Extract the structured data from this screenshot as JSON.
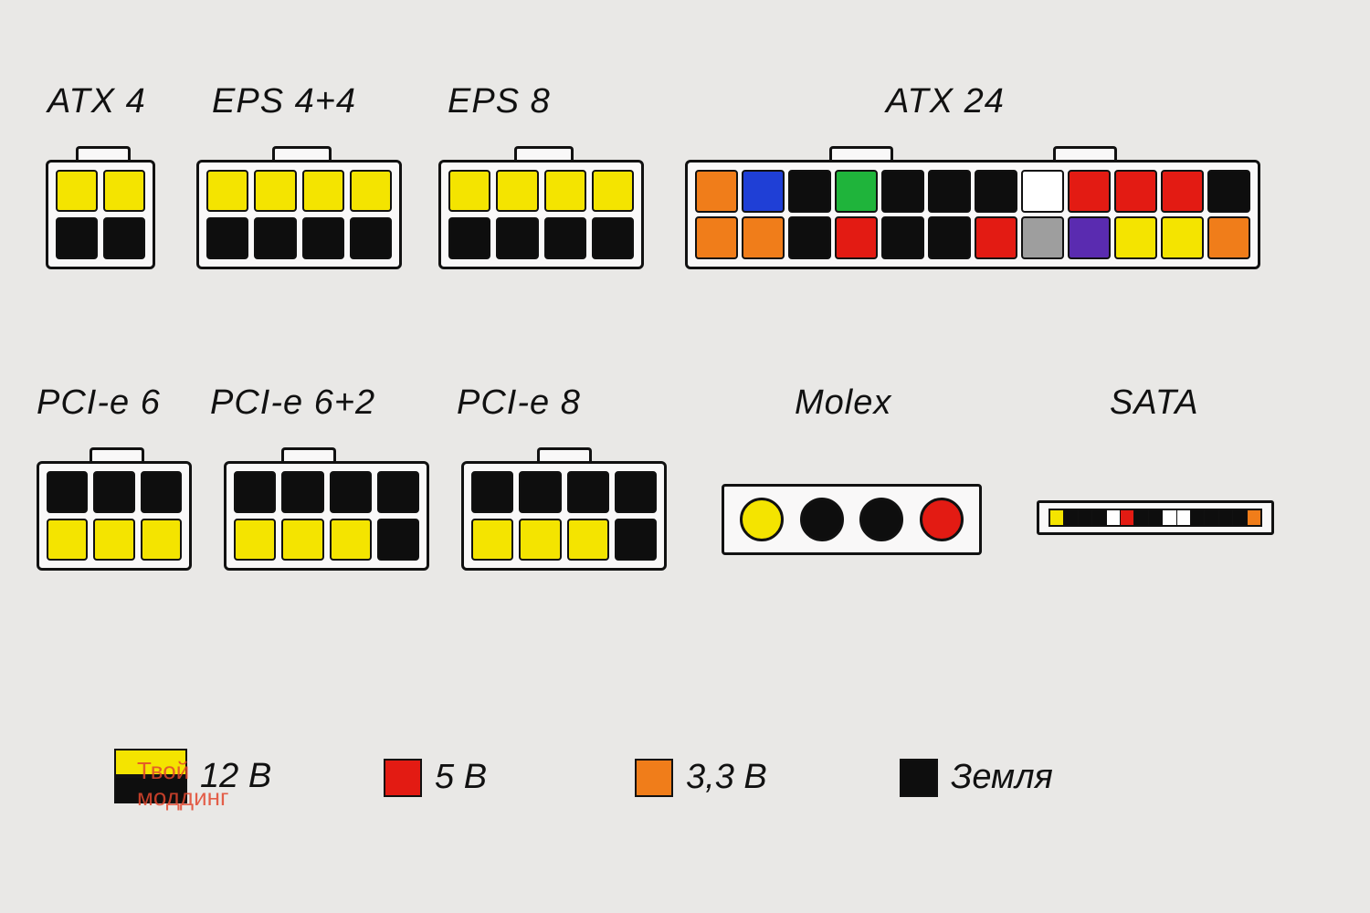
{
  "palette": {
    "yellow": "#f4e400",
    "black": "#0e0e0e",
    "red": "#e31b13",
    "orange": "#f07d1a",
    "blue": "#1f3fd6",
    "green": "#1fb43b",
    "white": "#ffffff",
    "gray": "#9e9e9e",
    "purple": "#5a2bb0",
    "housing_border": "#111111",
    "bg": "#e9e8e6"
  },
  "titles": {
    "atx4": "ATX 4",
    "eps44": "EPS 4+4",
    "eps8": "EPS 8",
    "atx24": "ATX 24",
    "pcie6": "PCI-e 6",
    "pcie62": "PCI-e 6+2",
    "pcie8": "PCI-e 8",
    "molex": "Molex",
    "sata": "SATA"
  },
  "connectors": {
    "atx4": {
      "cols": 2,
      "rows": 2,
      "pins": [
        "yellow",
        "yellow",
        "black",
        "black"
      ]
    },
    "eps44": {
      "cols": 4,
      "rows": 2,
      "pins": [
        "yellow",
        "yellow",
        "yellow",
        "yellow",
        "black",
        "black",
        "black",
        "black"
      ]
    },
    "eps8": {
      "cols": 4,
      "rows": 2,
      "pins": [
        "yellow",
        "yellow",
        "yellow",
        "yellow",
        "black",
        "black",
        "black",
        "black"
      ]
    },
    "atx24": {
      "cols": 12,
      "rows": 2,
      "pins": [
        "orange",
        "blue",
        "black",
        "green",
        "black",
        "black",
        "black",
        "white",
        "red",
        "red",
        "red",
        "black",
        "orange",
        "orange",
        "black",
        "red",
        "black",
        "black",
        "red",
        "gray",
        "purple",
        "yellow",
        "yellow",
        "orange"
      ]
    },
    "pcie6": {
      "cols": 3,
      "rows": 2,
      "pins": [
        "black",
        "black",
        "black",
        "yellow",
        "yellow",
        "yellow"
      ]
    },
    "pcie62": {
      "cols": 4,
      "rows": 2,
      "pins": [
        "black",
        "black",
        "black",
        "black",
        "yellow",
        "yellow",
        "yellow",
        "black"
      ]
    },
    "pcie8": {
      "cols": 4,
      "rows": 2,
      "pins": [
        "black",
        "black",
        "black",
        "black",
        "yellow",
        "yellow",
        "yellow",
        "black"
      ]
    },
    "molex": {
      "pins": [
        "yellow",
        "black",
        "black",
        "red"
      ]
    },
    "sata": {
      "pins": [
        "yellow",
        "black",
        "black",
        "black",
        "white",
        "red",
        "black",
        "black",
        "white",
        "white",
        "black",
        "black",
        "black",
        "black",
        "orange"
      ]
    }
  },
  "legend": [
    {
      "type": "double",
      "top": "yellow",
      "bottom": "black",
      "label": "12 В"
    },
    {
      "type": "single",
      "color": "red",
      "label": "5 В"
    },
    {
      "type": "single",
      "color": "orange",
      "label": "3,3 В"
    },
    {
      "type": "single",
      "color": "black",
      "label": "Земля"
    }
  ],
  "watermark": {
    "line1": "Твой",
    "line2": "моддинг"
  },
  "layout": {
    "title_fontsize": 38,
    "pin_size": 40,
    "border_width": 3
  }
}
